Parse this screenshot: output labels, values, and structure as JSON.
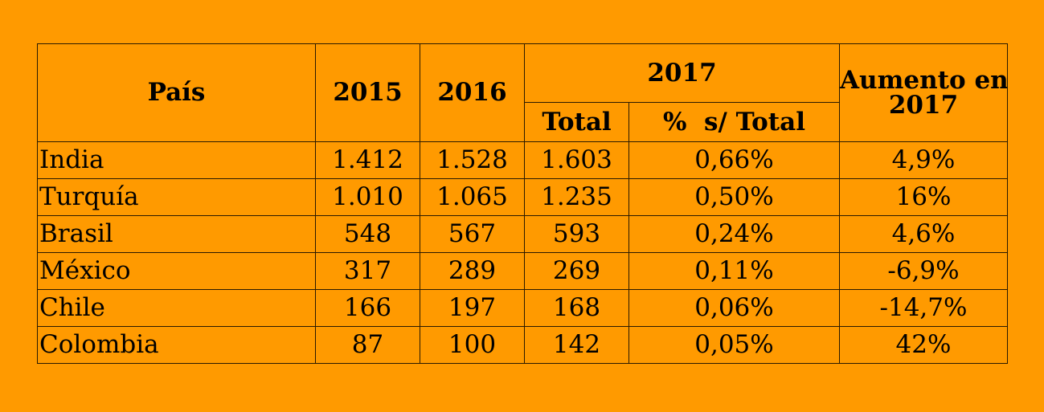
{
  "table": {
    "headers": {
      "country": "País",
      "y2015": "2015",
      "y2016": "2016",
      "y2017": "2017",
      "total": "Total",
      "pct_total": "%  s/ Total",
      "increase_line1": "Aumento en",
      "increase_line2": "2017"
    }
  },
  "chart_data": {
    "type": "table",
    "columns": [
      "País",
      "2015",
      "2016",
      "2017 Total",
      "2017 % s/ Total",
      "Aumento en 2017"
    ],
    "rows": [
      [
        "India",
        "1.412",
        "1.528",
        "1.603",
        "0,66%",
        "4,9%"
      ],
      [
        "Turquía",
        "1.010",
        "1.065",
        "1.235",
        "0,50%",
        "16%"
      ],
      [
        "Brasil",
        "548",
        "567",
        "593",
        "0,24%",
        "4,6%"
      ],
      [
        "México",
        "317",
        "289",
        "269",
        "0,11%",
        "-6,9%"
      ],
      [
        "Chile",
        "166",
        "197",
        "168",
        "0,06%",
        "-14,7%"
      ],
      [
        "Colombia",
        "87",
        "100",
        "142",
        "0,05%",
        "42%"
      ]
    ]
  },
  "colors": {
    "background": "#FF9A00",
    "border": "#2a1a00",
    "text": "#000000"
  }
}
